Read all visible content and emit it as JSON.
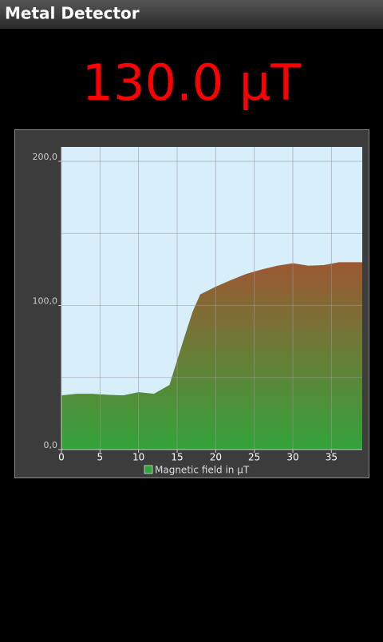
{
  "app_title": "Metal Detector",
  "reading": "130.0 µT",
  "chart_data": {
    "type": "area",
    "x": [
      0,
      2,
      4,
      6,
      8,
      10,
      12,
      14,
      15,
      16,
      17,
      18,
      20,
      22,
      24,
      26,
      28,
      30,
      32,
      34,
      36,
      38,
      39
    ],
    "series": [
      {
        "name": "Magnetic field in µT",
        "color": "#33a33a",
        "color_top": "#9c5833",
        "values": [
          37.6,
          38.7,
          38.7,
          38,
          37.6,
          39.8,
          38.7,
          44.8,
          62,
          79,
          95.6,
          107.7,
          113,
          117.7,
          122,
          125,
          127.6,
          129.3,
          127.6,
          128,
          130,
          130,
          130
        ]
      }
    ],
    "xlim": [
      0,
      39
    ],
    "ylim": [
      0,
      210
    ],
    "xticks": [
      0,
      5,
      10,
      15,
      20,
      25,
      30,
      35
    ],
    "yticks": [
      {
        "value": 0,
        "label": "0,0"
      },
      {
        "value": 100,
        "label": "100,0"
      },
      {
        "value": 200,
        "label": "200,0"
      }
    ],
    "ygrid": [
      50,
      150
    ],
    "grid": true
  }
}
